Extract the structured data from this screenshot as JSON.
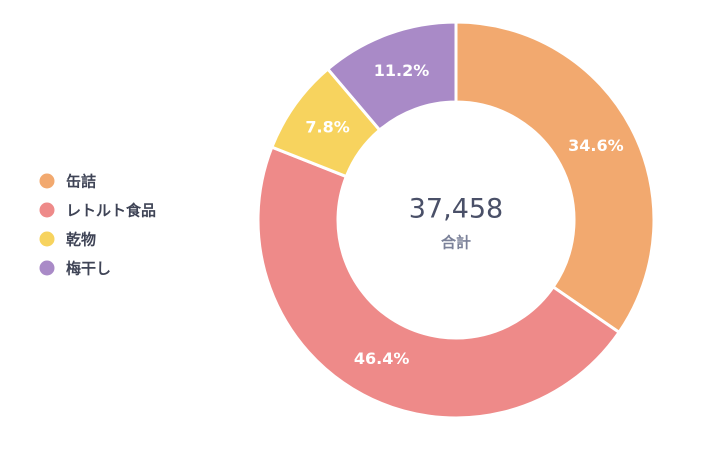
{
  "chart_data": {
    "type": "donut",
    "categories": [
      "缶詰",
      "レトルト食品",
      "乾物",
      "梅干し"
    ],
    "values": [
      34.6,
      46.4,
      7.8,
      11.2
    ],
    "value_labels": [
      "34.6%",
      "46.4%",
      "7.8%",
      "11.2%"
    ],
    "colors": [
      "#f2a96f",
      "#ee8a89",
      "#f7d35e",
      "#a98ac7"
    ],
    "total": {
      "value": 37458,
      "label": "37,458"
    },
    "total_label": "合計",
    "legend": "left"
  }
}
